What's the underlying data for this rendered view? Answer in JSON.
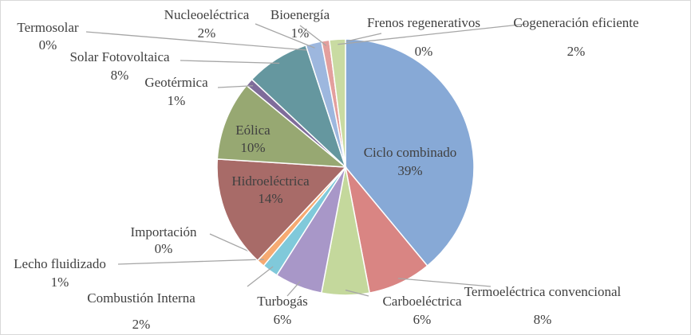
{
  "chart_data": {
    "type": "pie",
    "categories": [
      "Ciclo combinado",
      "Termoeléctrica convencional",
      "Carboeléctrica",
      "Turbogás",
      "Combustión Interna",
      "Lecho fluidizado",
      "Importación",
      "Hidroeléctrica",
      "Eólica",
      "Geotérmica",
      "Solar Fotovoltaica",
      "Termosolar",
      "Nucleoeléctrica",
      "Bioenergía",
      "Frenos regenerativos",
      "Cogeneración eficiente"
    ],
    "values": [
      39,
      8,
      6,
      6,
      2,
      1,
      0,
      14,
      10,
      1,
      8,
      0,
      2,
      1,
      0,
      2
    ],
    "value_labels": [
      "39%",
      "8%",
      "6%",
      "6%",
      "2%",
      "1%",
      "0%",
      "14%",
      "10%",
      "1%",
      "8%",
      "0%",
      "2%",
      "1%",
      "0%",
      "2%"
    ],
    "colors": [
      "#87a9d6",
      "#d98583",
      "#c4d89c",
      "#a897c8",
      "#80c9da",
      "#f6aa72",
      "#8fb4e3",
      "#a86b68",
      "#97a872",
      "#7f6c9a",
      "#65979f",
      "#6f8fbf",
      "#9db7de",
      "#e39f9d",
      "#b8c97c",
      "#c9dba2"
    ]
  }
}
